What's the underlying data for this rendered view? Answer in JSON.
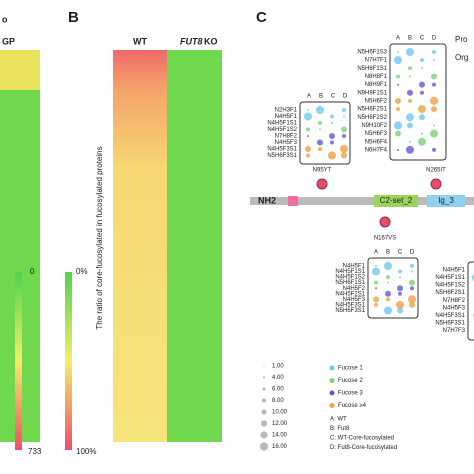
{
  "panel_a": {
    "title_parts": [
      "o",
      "GP"
    ],
    "colorbar": [
      "0",
      "733"
    ]
  },
  "panel_b": {
    "label": "B",
    "columns": [
      "WT",
      "FUT8",
      "KO"
    ],
    "ylabel": "The ratio of core-fucosylated in fucosylated proteins",
    "colorbar": [
      "0%",
      "100%"
    ]
  },
  "panel_c": {
    "label": "C",
    "cropped": [
      "Pro",
      "Org"
    ],
    "nterm": "NH2",
    "domains": [
      "C2-set_2",
      "Ig_3"
    ],
    "sites": [
      "N95YT",
      "N265IT",
      "N167VS"
    ],
    "box_headers": [
      "A",
      "B",
      "C",
      "D"
    ],
    "box_top": [
      "N5H6F1S3",
      "N7H7F1",
      "N5H6F1S1",
      "N8H8F1",
      "N8H9F1",
      "N9H9F1S1",
      "N5H6F2",
      "N5H6F2S1",
      "N5H6F2S2",
      "N9H10F2",
      "N5H6F3",
      "N5H6F4",
      "N6H7F4"
    ],
    "box_left": [
      "N2H3F1",
      "N4H5F1",
      "N4H5F1S1",
      "N4H5F1S2",
      "N7H8F2",
      "N4H5F3",
      "N4H5F3S1",
      "N5H6F3S1"
    ],
    "box_bottom": [
      "N4H5F1",
      "N4H5F1S1",
      "N4H5F1S2",
      "N5H6F1S1",
      "N4H5F2",
      "N4H5F2S1",
      "N4H5F3",
      "N4H5F3S1",
      "N5H6F3S1"
    ],
    "box_right": [
      "N4H5F1",
      "N4H5F1S1",
      "N4H5F1S2",
      "N5H6F2S1",
      "N7H8F2",
      "N4H5F3",
      "N4H5F3S1",
      "N5H6F3S1",
      "N7H7F3"
    ],
    "sizes": [
      "1.00",
      "4.00",
      "6.00",
      "8.00",
      "10.00",
      "12.00",
      "14.00",
      "16.00"
    ],
    "fucose": [
      "Fucose 1",
      "Fucose 2",
      "Fucose 3",
      "Fucose ≥4"
    ],
    "abbrev": [
      "A: WT",
      "B: Fut8",
      "C: WT-Core-fucosylated",
      "D: Fut8-Core-fucosylated"
    ]
  }
}
